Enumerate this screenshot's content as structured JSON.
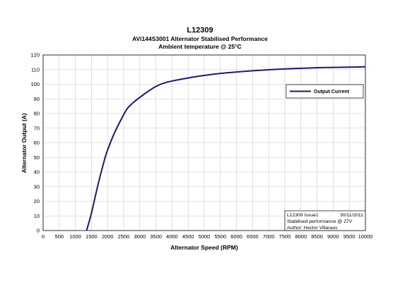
{
  "header": {
    "code": "L12309",
    "title": "AVi144S3001 Alternator Stabilised Performance",
    "subtitle": "Ambient temperature @ 25°C"
  },
  "info_box": {
    "line1_left": "L12309 Issue1",
    "line1_right": "30/11/2011",
    "line2": "Stabilised performance @ 27V",
    "line3": "Author: Hector Villaraus"
  },
  "chart_data": {
    "type": "line",
    "xlabel": "Alternator Speed (RPM)",
    "ylabel": "Alternator Output (A)",
    "xlim": [
      0,
      10000
    ],
    "ylim": [
      0,
      120
    ],
    "x_ticks": [
      "0",
      "500",
      "1000",
      "1500",
      "2000",
      "2500",
      "3000",
      "3500",
      "4000",
      "4500",
      "5000",
      "5500",
      "6000",
      "6500",
      "7000",
      "7500",
      "8000",
      "8500",
      "9000",
      "9500",
      "10000"
    ],
    "y_ticks": [
      "0",
      "10",
      "20",
      "30",
      "40",
      "50",
      "60",
      "70",
      "80",
      "90",
      "100",
      "110",
      "120"
    ],
    "grid": true,
    "legend_position": "right",
    "series": [
      {
        "name": "Output Current",
        "color": "#1a1a6e",
        "x": [
          1350,
          1500,
          1700,
          1900,
          2000,
          2200,
          2400,
          2600,
          2800,
          3000,
          3250,
          3500,
          3750,
          4000,
          4500,
          5000,
          5500,
          6000,
          6500,
          7000,
          7500,
          8000,
          8500,
          9000,
          9500,
          10000
        ],
        "y": [
          0,
          12,
          31,
          48,
          55,
          66,
          75,
          83,
          87.5,
          91,
          95,
          98.5,
          100.8,
          102.2,
          104.3,
          106,
          107.4,
          108.4,
          109.2,
          109.9,
          110.5,
          110.9,
          111.3,
          111.5,
          111.7,
          111.9
        ]
      }
    ]
  }
}
